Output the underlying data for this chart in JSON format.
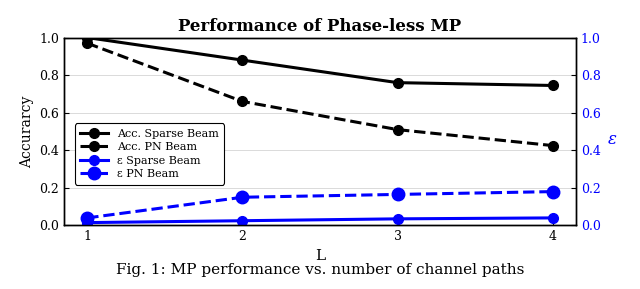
{
  "title": "Performance of Phase-less MP",
  "xlabel": "L",
  "ylabel_left": "Accurarcy",
  "ylabel_right": "ε",
  "x": [
    1,
    2,
    3,
    4
  ],
  "acc_sparse": [
    1.0,
    0.88,
    0.76,
    0.745
  ],
  "acc_pn": [
    0.97,
    0.66,
    0.51,
    0.425
  ],
  "eps_sparse": [
    0.015,
    0.025,
    0.035,
    0.04
  ],
  "eps_pn": [
    0.04,
    0.15,
    0.165,
    0.18
  ],
  "xlim": [
    0.85,
    4.15
  ],
  "ylim_left": [
    0,
    1.0
  ],
  "ylim_right": [
    0,
    1.0
  ],
  "yticks": [
    0,
    0.2,
    0.4,
    0.6,
    0.8,
    1.0
  ],
  "xticks": [
    1,
    2,
    3,
    4
  ],
  "legend_labels": [
    "Acc. Sparse Beam",
    "Acc. PN Beam",
    "ε Sparse Beam",
    "ε PN Beam"
  ],
  "black_color": "#000000",
  "blue_color": "#0000FF",
  "figcaption": "Fig. 1: MP performance vs. number of channel paths",
  "bg_color": "#ffffff"
}
